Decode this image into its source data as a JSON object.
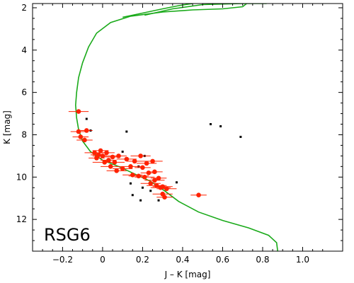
{
  "chart_data": {
    "type": "scatter",
    "title": "",
    "xlabel": "J – K [mag]",
    "ylabel": "K [mag]",
    "xlim": [
      -0.35,
      1.2
    ],
    "ylim": [
      13.5,
      1.8
    ],
    "y_inverted": true,
    "xticks": [
      -0.2,
      0.0,
      0.2,
      0.4,
      0.6,
      0.8,
      1.0
    ],
    "xtick_labels": [
      "−0.2",
      "0",
      "0.2",
      "0.4",
      "0.6",
      "0.8",
      "1.0"
    ],
    "yticks": [
      2,
      4,
      6,
      8,
      10,
      12
    ],
    "ytick_labels": [
      "2",
      "4",
      "6",
      "8",
      "10",
      "12"
    ],
    "grid": false,
    "annotation": "RSG6",
    "colors": {
      "members": "#ff2200",
      "field": "#000000",
      "isochrone": "#1aaa1a"
    },
    "series": [
      {
        "kind": "points-with-xerror",
        "color": "#ff2200",
        "points": [
          {
            "x": -0.12,
            "y": 6.9,
            "xerr": 0.05
          },
          {
            "x": -0.12,
            "y": 7.85,
            "xerr": 0.04
          },
          {
            "x": -0.11,
            "y": 8.1,
            "xerr": 0.04
          },
          {
            "x": -0.09,
            "y": 8.25,
            "xerr": 0.04
          },
          {
            "x": -0.08,
            "y": 7.8,
            "xerr": 0.03
          },
          {
            "x": -0.04,
            "y": 8.85,
            "xerr": 0.05
          },
          {
            "x": -0.03,
            "y": 9.1,
            "xerr": 0.04
          },
          {
            "x": -0.02,
            "y": 8.95,
            "xerr": 0.04
          },
          {
            "x": -0.01,
            "y": 8.75,
            "xerr": 0.04
          },
          {
            "x": 0.0,
            "y": 9.0,
            "xerr": 0.05
          },
          {
            "x": 0.01,
            "y": 9.3,
            "xerr": 0.06
          },
          {
            "x": 0.02,
            "y": 8.85,
            "xerr": 0.04
          },
          {
            "x": 0.03,
            "y": 9.2,
            "xerr": 0.04
          },
          {
            "x": 0.04,
            "y": 9.5,
            "xerr": 0.05
          },
          {
            "x": 0.05,
            "y": 9.05,
            "xerr": 0.04
          },
          {
            "x": 0.06,
            "y": 9.3,
            "xerr": 0.05
          },
          {
            "x": 0.07,
            "y": 9.7,
            "xerr": 0.05
          },
          {
            "x": 0.08,
            "y": 9.0,
            "xerr": 0.04
          },
          {
            "x": 0.1,
            "y": 9.6,
            "xerr": 0.05
          },
          {
            "x": 0.12,
            "y": 9.15,
            "xerr": 0.05
          },
          {
            "x": 0.14,
            "y": 9.5,
            "xerr": 0.05
          },
          {
            "x": 0.15,
            "y": 9.9,
            "xerr": 0.05
          },
          {
            "x": 0.16,
            "y": 9.25,
            "xerr": 0.04
          },
          {
            "x": 0.18,
            "y": 9.95,
            "xerr": 0.05
          },
          {
            "x": 0.19,
            "y": 9.0,
            "xerr": 0.05
          },
          {
            "x": 0.2,
            "y": 9.55,
            "xerr": 0.04
          },
          {
            "x": 0.21,
            "y": 10.0,
            "xerr": 0.05
          },
          {
            "x": 0.22,
            "y": 9.35,
            "xerr": 0.05
          },
          {
            "x": 0.23,
            "y": 9.8,
            "xerr": 0.04
          },
          {
            "x": 0.24,
            "y": 10.3,
            "xerr": 0.05
          },
          {
            "x": 0.25,
            "y": 9.25,
            "xerr": 0.05
          },
          {
            "x": 0.26,
            "y": 10.15,
            "xerr": 0.05
          },
          {
            "x": 0.26,
            "y": 9.75,
            "xerr": 0.04
          },
          {
            "x": 0.27,
            "y": 10.4,
            "xerr": 0.05
          },
          {
            "x": 0.28,
            "y": 10.05,
            "xerr": 0.04
          },
          {
            "x": 0.29,
            "y": 10.5,
            "xerr": 0.05
          },
          {
            "x": 0.3,
            "y": 10.45,
            "xerr": 0.05
          },
          {
            "x": 0.3,
            "y": 10.8,
            "xerr": 0.05
          },
          {
            "x": 0.31,
            "y": 10.95,
            "xerr": 0.04
          },
          {
            "x": 0.32,
            "y": 10.55,
            "xerr": 0.05
          },
          {
            "x": 0.48,
            "y": 10.85,
            "xerr": 0.04
          }
        ]
      },
      {
        "kind": "points",
        "color": "#000000",
        "points": [
          {
            "x": -0.08,
            "y": 7.25
          },
          {
            "x": -0.06,
            "y": 7.8
          },
          {
            "x": 0.12,
            "y": 7.85
          },
          {
            "x": 0.1,
            "y": 8.8
          },
          {
            "x": 0.21,
            "y": 9.0
          },
          {
            "x": 0.18,
            "y": 9.5
          },
          {
            "x": 0.14,
            "y": 10.3
          },
          {
            "x": 0.2,
            "y": 10.5
          },
          {
            "x": 0.15,
            "y": 10.85
          },
          {
            "x": 0.19,
            "y": 11.1
          },
          {
            "x": 0.24,
            "y": 10.65
          },
          {
            "x": 0.28,
            "y": 11.1
          },
          {
            "x": 0.37,
            "y": 10.25
          },
          {
            "x": 0.54,
            "y": 7.5
          },
          {
            "x": 0.59,
            "y": 7.6
          },
          {
            "x": 0.69,
            "y": 8.1
          }
        ]
      },
      {
        "kind": "curve",
        "color": "#1aaa1a",
        "segments": [
          [
            {
              "x": 0.1,
              "y": 2.45
            },
            {
              "x": 0.2,
              "y": 2.25
            },
            {
              "x": 0.3,
              "y": 2.05
            },
            {
              "x": 0.38,
              "y": 1.9
            },
            {
              "x": 0.45,
              "y": 1.8
            }
          ],
          [
            {
              "x": 0.21,
              "y": 2.35
            },
            {
              "x": 0.35,
              "y": 2.05
            },
            {
              "x": 0.5,
              "y": 1.85
            },
            {
              "x": 0.7,
              "y": 1.8
            },
            {
              "x": 0.82,
              "y": 1.8
            }
          ],
          [
            {
              "x": 0.72,
              "y": 1.8
            },
            {
              "x": 0.7,
              "y": 1.95
            },
            {
              "x": 0.6,
              "y": 2.05
            },
            {
              "x": 0.45,
              "y": 2.1
            },
            {
              "x": 0.3,
              "y": 2.2
            },
            {
              "x": 0.14,
              "y": 2.4
            },
            {
              "x": 0.04,
              "y": 2.7
            },
            {
              "x": -0.03,
              "y": 3.2
            },
            {
              "x": -0.07,
              "y": 3.85
            },
            {
              "x": -0.1,
              "y": 4.6
            },
            {
              "x": -0.12,
              "y": 5.3
            },
            {
              "x": -0.13,
              "y": 6.0
            },
            {
              "x": -0.135,
              "y": 6.6
            },
            {
              "x": -0.13,
              "y": 7.2
            },
            {
              "x": -0.12,
              "y": 7.75
            },
            {
              "x": -0.1,
              "y": 8.3
            },
            {
              "x": -0.06,
              "y": 8.8
            },
            {
              "x": 0.0,
              "y": 9.2
            },
            {
              "x": 0.08,
              "y": 9.5
            },
            {
              "x": 0.16,
              "y": 9.85
            },
            {
              "x": 0.24,
              "y": 10.2
            },
            {
              "x": 0.31,
              "y": 10.65
            },
            {
              "x": 0.38,
              "y": 11.15
            },
            {
              "x": 0.48,
              "y": 11.65
            },
            {
              "x": 0.6,
              "y": 12.05
            },
            {
              "x": 0.73,
              "y": 12.4
            },
            {
              "x": 0.83,
              "y": 12.75
            },
            {
              "x": 0.87,
              "y": 13.1
            },
            {
              "x": 0.875,
              "y": 13.5
            }
          ]
        ]
      }
    ]
  }
}
